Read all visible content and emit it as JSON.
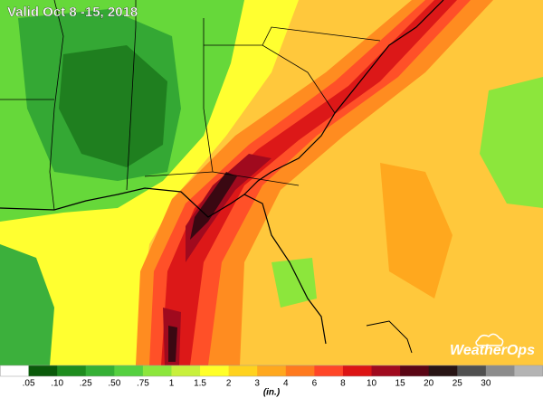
{
  "title": "Valid Oct 8 -15, 2018",
  "brand": "WeatherOps",
  "legend": {
    "labels": [
      ".05",
      ".10",
      ".25",
      ".50",
      ".75",
      "1",
      "1.5",
      "2",
      "3",
      "4",
      "6",
      "8",
      "10",
      "15",
      "20",
      "25",
      "30"
    ],
    "colors": [
      "#ffffff",
      "#0a5a0a",
      "#1e8c1e",
      "#35b035",
      "#55d040",
      "#8ce63c",
      "#c8f03c",
      "#ffff28",
      "#ffd21e",
      "#ffa81e",
      "#ff7a1e",
      "#ff4628",
      "#dc1414",
      "#a00a1e",
      "#5a0514",
      "#281414",
      "#505050",
      "#8c8c8c",
      "#b4b4b4"
    ],
    "unit": "(in.)"
  }
}
